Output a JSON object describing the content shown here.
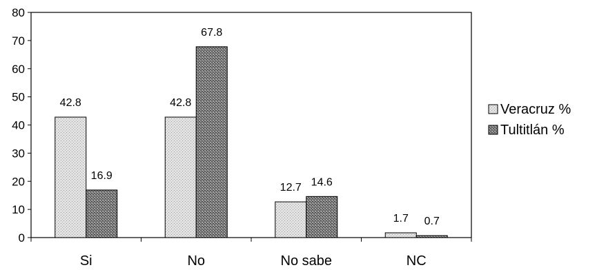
{
  "chart_data": {
    "type": "bar",
    "categories": [
      "Si",
      "No",
      "No sabe",
      "NC"
    ],
    "series": [
      {
        "name": "Veracruz %",
        "values": [
          42.8,
          42.8,
          12.7,
          1.7
        ],
        "color": "#d9d9d9"
      },
      {
        "name": "Tultitlán %",
        "values": [
          16.9,
          67.8,
          14.6,
          0.7
        ],
        "color": "#6e6e6e"
      }
    ],
    "title": "",
    "xlabel": "",
    "ylabel": "",
    "ylim": [
      0,
      80
    ],
    "yticks": [
      0,
      10,
      20,
      30,
      40,
      50,
      60,
      70,
      80
    ],
    "grid": false,
    "legend_position": "right",
    "data_labels": true
  }
}
